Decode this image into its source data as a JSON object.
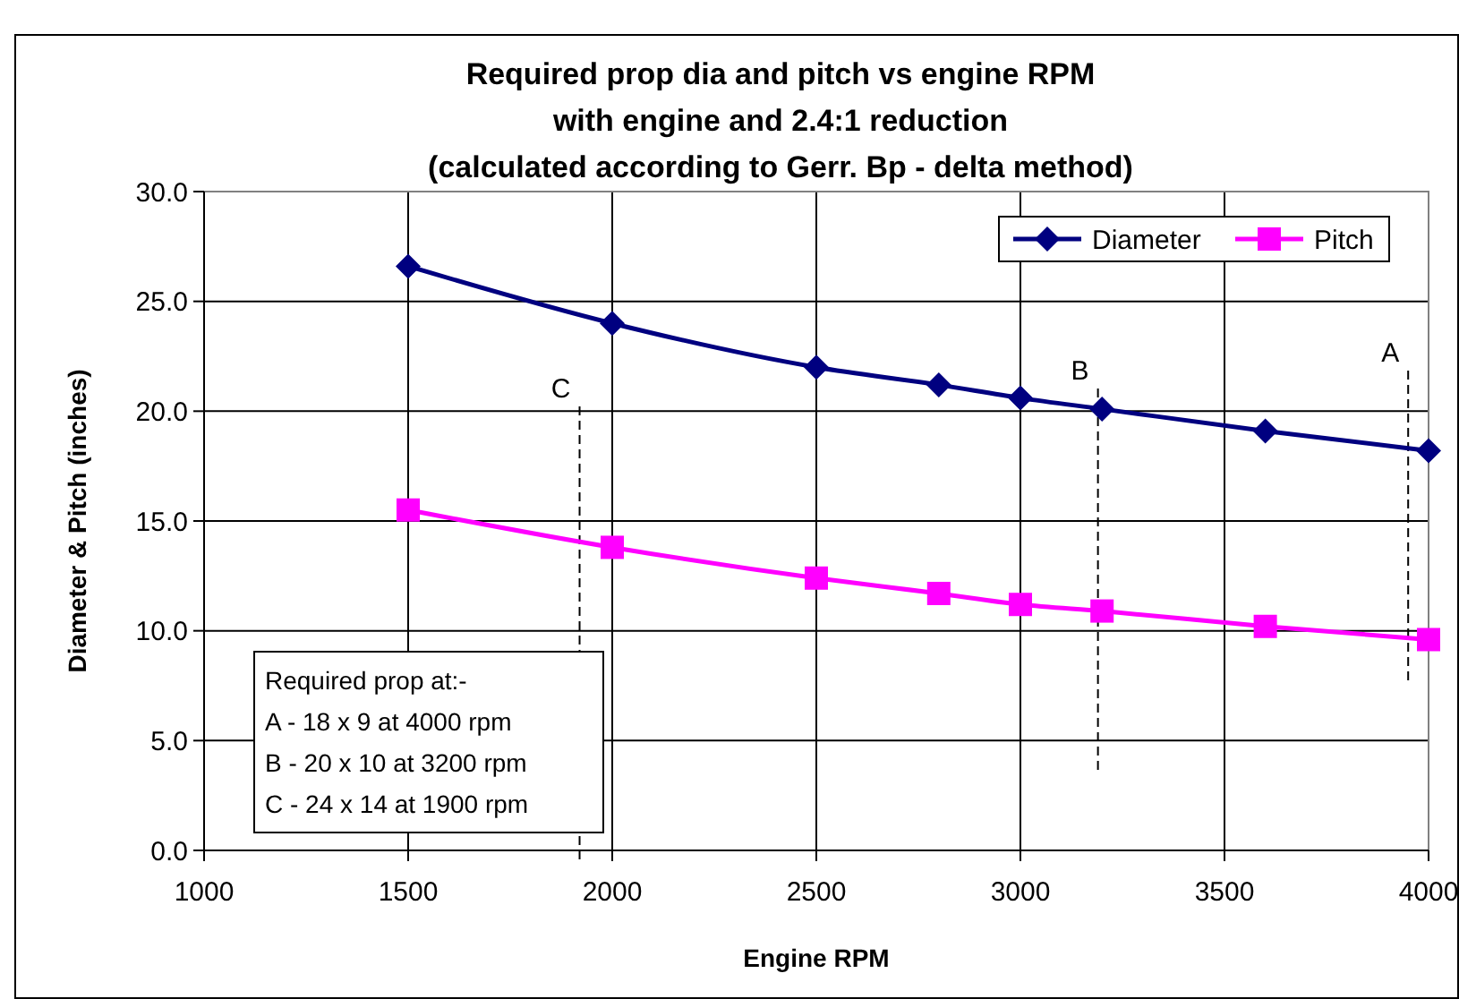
{
  "chart_data": {
    "type": "line",
    "title": "Required prop dia and pitch vs engine RPM\nwith engine and 2.4:1 reduction\n(calculated according to Gerr.  Bp - delta method)",
    "xlabel": "Engine RPM",
    "ylabel": "Diameter & Pitch (inches)",
    "x": [
      1500,
      2000,
      2500,
      2800,
      3000,
      3200,
      3600,
      4000
    ],
    "series": [
      {
        "name": "Diameter",
        "color": "#000080",
        "marker": "diamond",
        "values": [
          26.6,
          24.0,
          22.0,
          21.2,
          20.6,
          20.1,
          19.1,
          18.2
        ]
      },
      {
        "name": "Pitch",
        "color": "#ff00ff",
        "marker": "square",
        "values": [
          15.5,
          13.8,
          12.4,
          11.7,
          11.2,
          10.9,
          10.2,
          9.6
        ]
      }
    ],
    "xlim": [
      1000,
      4000
    ],
    "xticks": [
      1000,
      1500,
      2000,
      2500,
      3000,
      3500,
      4000
    ],
    "ylim": [
      0,
      30
    ],
    "yticks": [
      {
        "value": 0,
        "label": "0.0"
      },
      {
        "value": 5,
        "label": "5.0"
      },
      {
        "value": 10,
        "label": "10.0"
      },
      {
        "value": 15,
        "label": "15.0"
      },
      {
        "value": 20,
        "label": "20.0"
      },
      {
        "value": 25,
        "label": "25.0"
      },
      {
        "value": 30,
        "label": "30.0"
      }
    ],
    "grid": true,
    "legend": "top right",
    "line_style": "solid",
    "ref_lines": [
      {
        "axis": "x",
        "value": 3950,
        "label": "A",
        "line_style": "dashed",
        "color": "#000000"
      },
      {
        "axis": "x",
        "value": 3190,
        "label": "B",
        "line_style": "dashed",
        "color": "#000000"
      },
      {
        "axis": "x",
        "value": 1920,
        "label": "C",
        "line_style": "dashed",
        "color": "#000000"
      }
    ],
    "annotations": [
      "Required prop at:-",
      "A - 18 x 9 at 4000 rpm",
      "B - 20 x 10 at 3200 rpm",
      "C - 24 x 14 at 1900 rpm"
    ]
  }
}
